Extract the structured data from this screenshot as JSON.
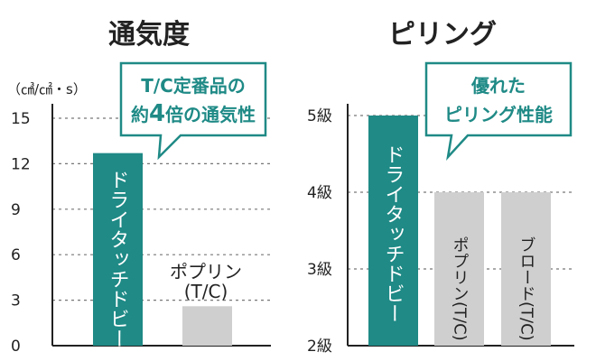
{
  "colors": {
    "teal": "#1f8a86",
    "gray": "#cfcfcf",
    "axis": "#222222",
    "grid": "#777777"
  },
  "chart_data": [
    {
      "type": "bar",
      "title": "通気度",
      "ylabel": "（㎤/㎠・s）",
      "ylim": [
        0,
        15
      ],
      "yticks": [
        "0",
        "3",
        "6",
        "9",
        "12",
        "15"
      ],
      "grid": true,
      "categories": [
        "ドライタッチドビー",
        "ポプリン(T/C)"
      ],
      "values": [
        12.7,
        2.6
      ],
      "bar_colors": [
        "#1f8a86",
        "#cfcfcf"
      ],
      "category_labels": {
        "bar1": "ドライタッチドビー",
        "bar2_line1": "ポプリン",
        "bar2_line2": "(T/C)"
      },
      "callout": {
        "line1": "T/C定番品の",
        "line2_a": "約",
        "line2_b": "4",
        "line2_c": "倍の通気性"
      }
    },
    {
      "type": "bar",
      "title": "ピリング",
      "ylim": [
        2,
        5
      ],
      "yticks": [
        "2級",
        "3級",
        "4級",
        "5級"
      ],
      "grid": true,
      "categories": [
        "ドライタッチドビー",
        "ポプリン(T/C)",
        "ブロード(T/C)"
      ],
      "values": [
        5,
        4,
        4
      ],
      "bar_colors": [
        "#1f8a86",
        "#cfcfcf",
        "#cfcfcf"
      ],
      "category_labels": {
        "bar1": "ドライタッチドビー",
        "bar2": "ポプリン(T/C)",
        "bar3": "ブロード(T/C)"
      },
      "callout": {
        "line1": "優れた",
        "line2": "ピリング性能"
      }
    }
  ]
}
